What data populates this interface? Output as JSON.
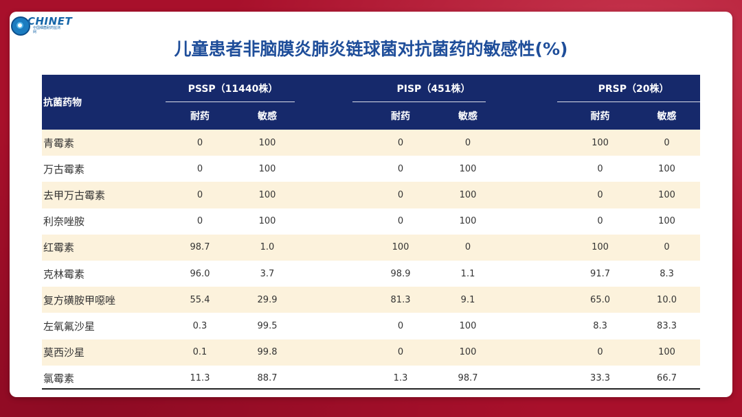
{
  "logo": {
    "name": "CHINET",
    "subtitle": "中国细菌耐药监测网"
  },
  "title": "儿童患者非脑膜炎肺炎链球菌对抗菌药的敏感性(%)",
  "table": {
    "drug_header": "抗菌药物",
    "groups": [
      "PSSP（11440株）",
      "PISP（451株）",
      "PRSP（20株）"
    ],
    "sub_headers": [
      "耐药",
      "敏感",
      "耐药",
      "敏感",
      "耐药",
      "敏感"
    ],
    "rows": [
      {
        "drug": "青霉素",
        "values": [
          "0",
          "100",
          "0",
          "0",
          "100",
          "0"
        ]
      },
      {
        "drug": "万古霉素",
        "values": [
          "0",
          "100",
          "0",
          "100",
          "0",
          "100"
        ]
      },
      {
        "drug": "去甲万古霉素",
        "values": [
          "0",
          "100",
          "0",
          "100",
          "0",
          "100"
        ]
      },
      {
        "drug": "利奈唑胺",
        "values": [
          "0",
          "100",
          "0",
          "100",
          "0",
          "100"
        ]
      },
      {
        "drug": "红霉素",
        "values": [
          "98.7",
          "1.0",
          "100",
          "0",
          "100",
          "0"
        ]
      },
      {
        "drug": "克林霉素",
        "values": [
          "96.0",
          "3.7",
          "98.9",
          "1.1",
          "91.7",
          "8.3"
        ]
      },
      {
        "drug": "复方磺胺甲噁唑",
        "values": [
          "55.4",
          "29.9",
          "81.3",
          "9.1",
          "65.0",
          "10.0"
        ]
      },
      {
        "drug": "左氧氟沙星",
        "values": [
          "0.3",
          "99.5",
          "0",
          "100",
          "8.3",
          "83.3"
        ]
      },
      {
        "drug": "莫西沙星",
        "values": [
          "0.1",
          "99.8",
          "0",
          "100",
          "0",
          "100"
        ]
      },
      {
        "drug": "氯霉素",
        "values": [
          "11.3",
          "88.7",
          "1.3",
          "98.7",
          "33.3",
          "66.7"
        ]
      }
    ]
  },
  "colors": {
    "background": "#a8102b",
    "header": "#16296b",
    "title": "#1f4e9a",
    "row_alt": "#fcf2dc"
  }
}
